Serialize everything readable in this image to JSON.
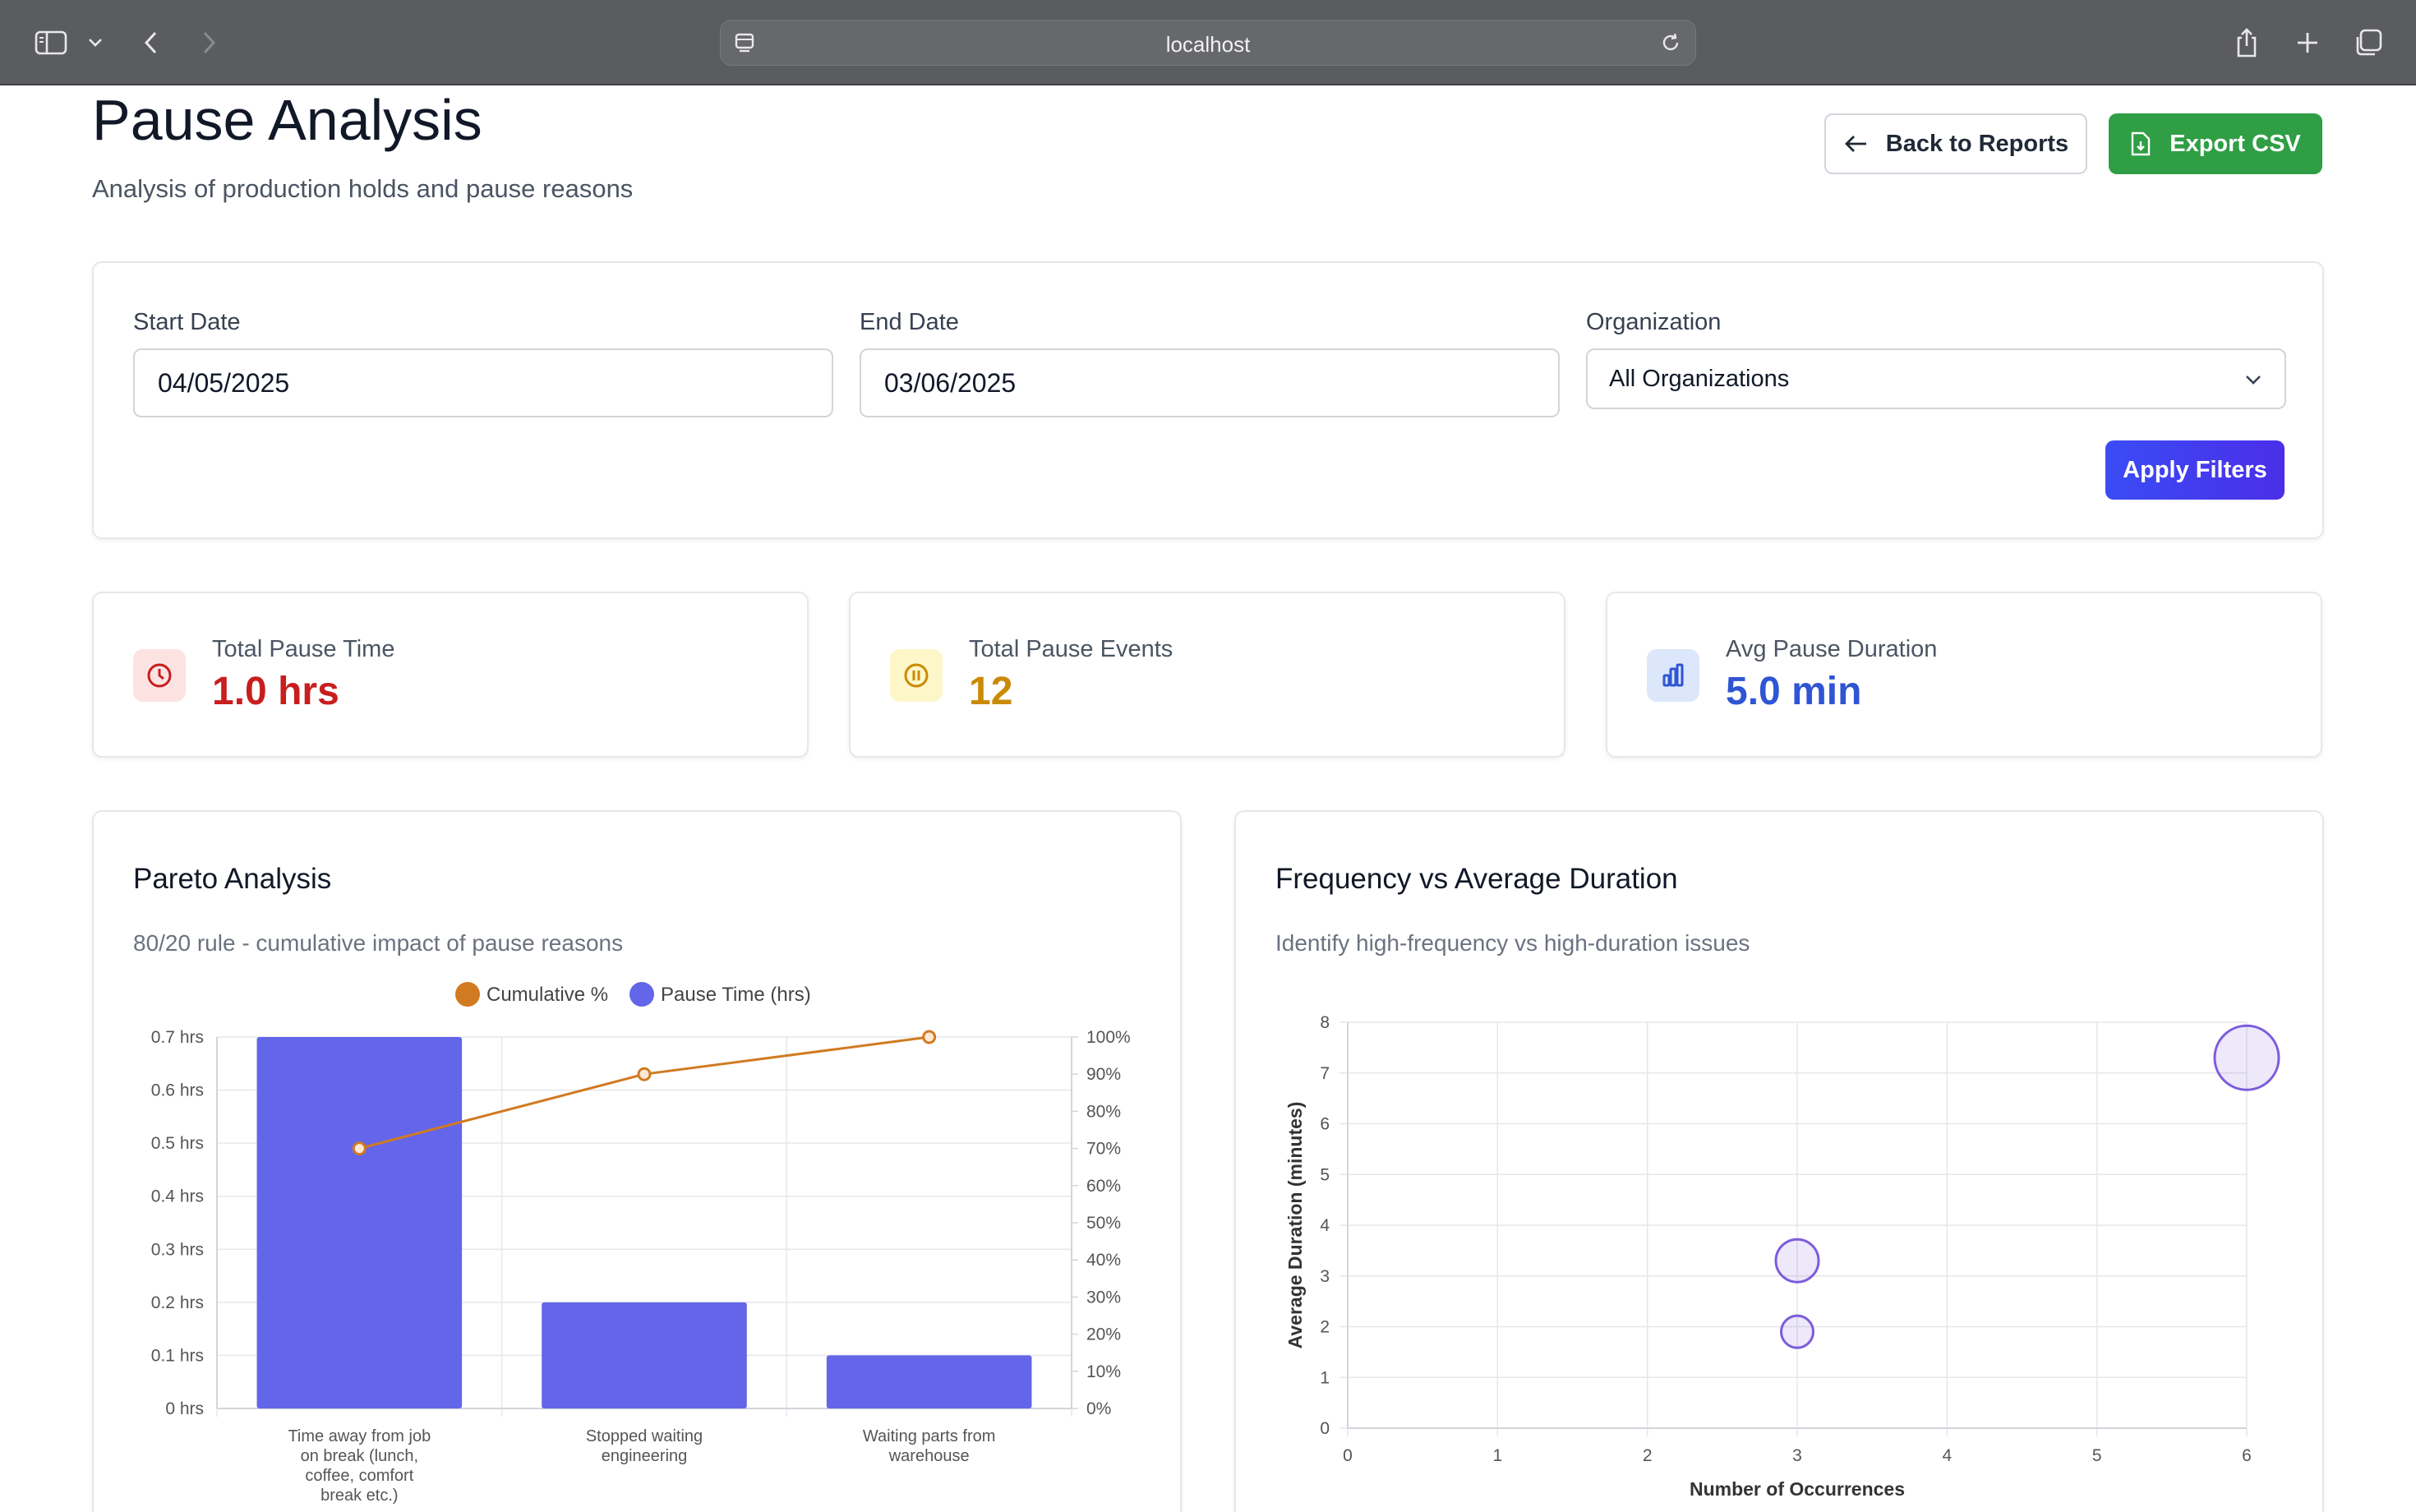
{
  "browser": {
    "url": "localhost"
  },
  "header": {
    "title": "Pause Analysis",
    "subtitle": "Analysis of production holds and pause reasons",
    "back_label": "Back to Reports",
    "export_label": "Export CSV"
  },
  "filters": {
    "start_label": "Start Date",
    "start_value": "04/05/2025",
    "end_label": "End Date",
    "end_value": "03/06/2025",
    "org_label": "Organization",
    "org_value": "All Organizations",
    "apply_label": "Apply Filters"
  },
  "stats": [
    {
      "label": "Total Pause Time",
      "value": "1.0 hrs",
      "color": "#c81e1e",
      "icon": "clock-icon"
    },
    {
      "label": "Total Pause Events",
      "value": "12",
      "color": "#ca8a04",
      "icon": "pause-circle-icon"
    },
    {
      "label": "Avg Pause Duration",
      "value": "5.0 min",
      "color": "#2f55d4",
      "icon": "bar-chart-icon"
    }
  ],
  "pareto": {
    "title": "Pareto Analysis",
    "subtitle": "80/20 rule - cumulative impact of pause reasons"
  },
  "scatter": {
    "title": "Frequency vs Average Duration",
    "subtitle": "Identify high-frequency vs high-duration issues"
  },
  "chart_data": [
    {
      "type": "bar",
      "categories": [
        [
          "Time away from job",
          "on break (lunch,",
          "coffee, comfort",
          "break etc.)"
        ],
        [
          "Stopped waiting",
          "engineering"
        ],
        [
          "Waiting parts from",
          "warehouse"
        ]
      ],
      "series": [
        {
          "name": "Pause Time (hrs)",
          "type": "bar",
          "axis": "left",
          "values": [
            0.7,
            0.2,
            0.1
          ],
          "color": "#6366e8"
        },
        {
          "name": "Cumulative %",
          "type": "line",
          "axis": "right",
          "values": [
            70,
            90,
            100
          ],
          "color": "#d17a22"
        }
      ],
      "y_left": {
        "ticks": [
          "0 hrs",
          "0.1 hrs",
          "0.2 hrs",
          "0.3 hrs",
          "0.4 hrs",
          "0.5 hrs",
          "0.6 hrs",
          "0.7 hrs"
        ],
        "range": [
          0,
          0.7
        ]
      },
      "y_right": {
        "ticks": [
          "0%",
          "10%",
          "20%",
          "30%",
          "40%",
          "50%",
          "60%",
          "70%",
          "80%",
          "90%",
          "100%"
        ],
        "range": [
          0,
          100
        ]
      },
      "legend": "top",
      "grid": true
    },
    {
      "type": "scatter",
      "xlabel": "Number of Occurrences",
      "ylabel": "Average Duration (minutes)",
      "xlim": [
        0,
        6
      ],
      "ylim": [
        0,
        8
      ],
      "x_ticks": [
        "0",
        "1",
        "2",
        "3",
        "4",
        "5",
        "6"
      ],
      "y_ticks": [
        "0",
        "1",
        "2",
        "3",
        "4",
        "5",
        "6",
        "7",
        "8"
      ],
      "points": [
        {
          "x": 6,
          "y": 7.3,
          "size": 3
        },
        {
          "x": 3,
          "y": 3.3,
          "size": 2
        },
        {
          "x": 3,
          "y": 1.9,
          "size": 1.5
        }
      ],
      "color": "#7c5cdc",
      "grid": true
    }
  ]
}
